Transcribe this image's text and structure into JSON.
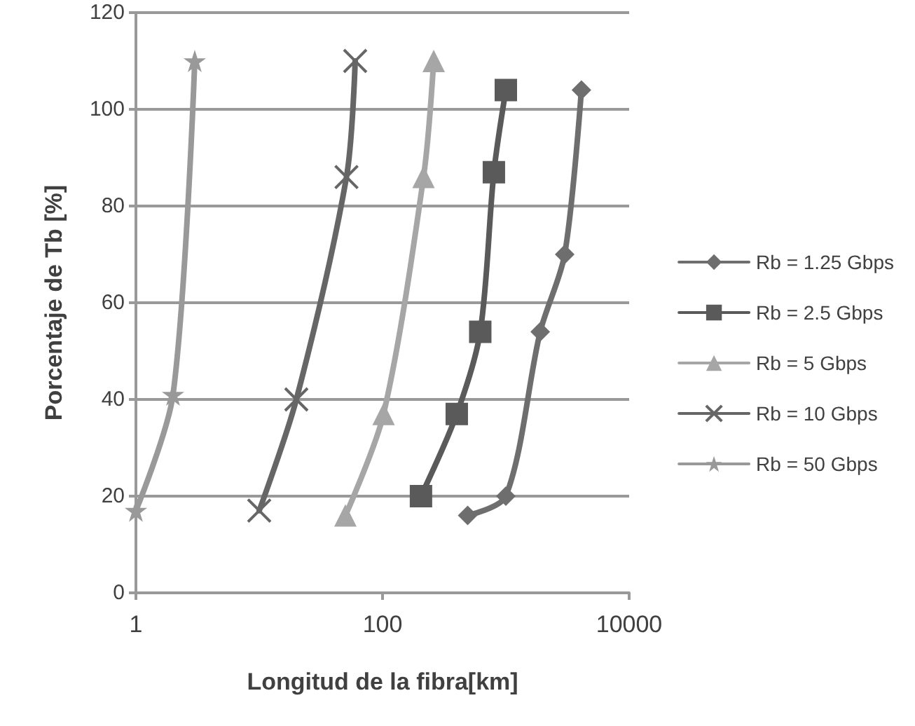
{
  "chart_data": {
    "type": "line",
    "xlabel": "Longitud de la fibra[km]",
    "ylabel": "Porcentaje de Tb [%]",
    "log": "x",
    "xlim": [
      1,
      10000
    ],
    "xticks": [
      1,
      100,
      10000
    ],
    "ylim": [
      0,
      120
    ],
    "yticks": [
      0,
      20,
      40,
      60,
      80,
      100,
      120
    ],
    "grid": "y",
    "legend": "right",
    "series": [
      {
        "name": "Rb = 1.25 Gbps",
        "color": "#6e6e6e",
        "marker": "diamond",
        "x": [
          490,
          1000,
          1900,
          3000,
          4100
        ],
        "values": [
          16,
          20,
          54,
          70,
          104
        ]
      },
      {
        "name": "Rb = 2.5 Gbps",
        "color": "#5a5a5a",
        "marker": "square",
        "x": [
          205,
          400,
          620,
          800,
          1000
        ],
        "values": [
          20,
          37,
          54,
          87,
          104
        ]
      },
      {
        "name": "Rb = 5 Gbps",
        "color": "#a6a6a6",
        "marker": "triangle",
        "x": [
          50,
          102,
          215,
          260
        ],
        "values": [
          16,
          37,
          86,
          110
        ]
      },
      {
        "name": "Rb = 10 Gbps",
        "color": "#666666",
        "marker": "cross",
        "x": [
          10,
          20,
          51,
          60
        ],
        "values": [
          17,
          40,
          86,
          110
        ]
      },
      {
        "name": "Rb = 50 Gbps",
        "color": "#999999",
        "marker": "star",
        "x": [
          1,
          2,
          3
        ],
        "values": [
          17,
          41,
          110
        ]
      }
    ]
  }
}
